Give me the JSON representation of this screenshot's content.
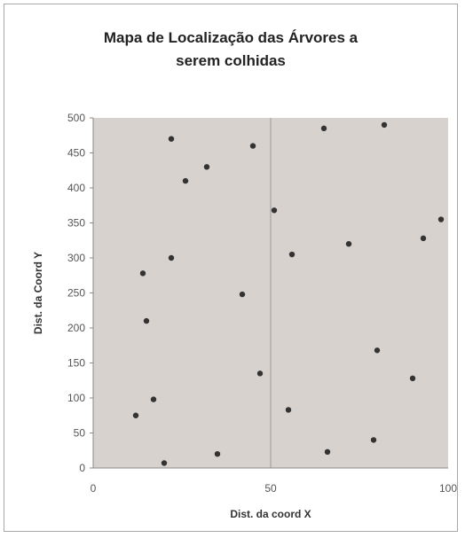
{
  "chart_data": {
    "type": "scatter",
    "title_line1": "Mapa de Localização das Árvores a",
    "title_line2": "serem colhidas",
    "xlabel": "Dist. da coord X",
    "ylabel": "Dist. da Coord Y",
    "xlim": [
      0,
      100
    ],
    "ylim": [
      0,
      500
    ],
    "xticks": [
      "0",
      "50",
      "100"
    ],
    "yticks": [
      "0",
      "50",
      "100",
      "150",
      "200",
      "250",
      "300",
      "350",
      "400",
      "450",
      "500"
    ],
    "grid": "vertical",
    "legend": "none",
    "colors": {
      "plot_bg": "#d8d2ce",
      "marker": "#333333",
      "grid": "#9a9a9a"
    },
    "points": [
      {
        "x": 22,
        "y": 470
      },
      {
        "x": 45,
        "y": 460
      },
      {
        "x": 65,
        "y": 485
      },
      {
        "x": 82,
        "y": 490
      },
      {
        "x": 32,
        "y": 430
      },
      {
        "x": 26,
        "y": 410
      },
      {
        "x": 51,
        "y": 368
      },
      {
        "x": 98,
        "y": 355
      },
      {
        "x": 93,
        "y": 328
      },
      {
        "x": 72,
        "y": 320
      },
      {
        "x": 56,
        "y": 305
      },
      {
        "x": 22,
        "y": 300
      },
      {
        "x": 14,
        "y": 278
      },
      {
        "x": 42,
        "y": 248
      },
      {
        "x": 15,
        "y": 210
      },
      {
        "x": 80,
        "y": 168
      },
      {
        "x": 47,
        "y": 135
      },
      {
        "x": 90,
        "y": 128
      },
      {
        "x": 17,
        "y": 98
      },
      {
        "x": 55,
        "y": 83
      },
      {
        "x": 12,
        "y": 75
      },
      {
        "x": 79,
        "y": 40
      },
      {
        "x": 66,
        "y": 23
      },
      {
        "x": 35,
        "y": 20
      },
      {
        "x": 20,
        "y": 7
      }
    ]
  }
}
